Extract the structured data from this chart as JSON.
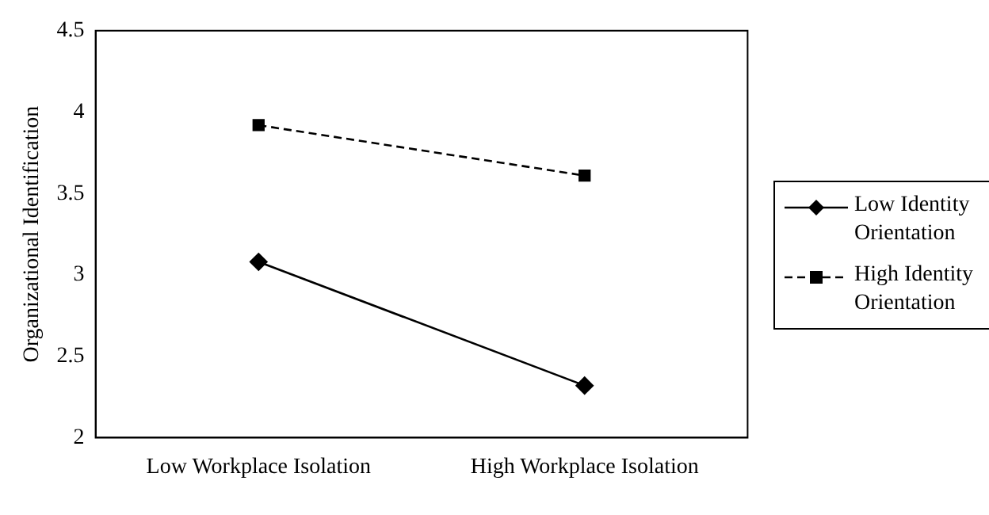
{
  "chart_data": {
    "type": "line",
    "ylabel": "Organizational Identification",
    "categories": [
      "Low Workplace Isolation",
      "High Workplace Isolation"
    ],
    "series": [
      {
        "name": "Low Identity Orientation",
        "color": "#000000",
        "values": [
          3.08,
          2.32
        ],
        "marker": "diamond",
        "line_style": "solid"
      },
      {
        "name": "High Identity Orientation",
        "color": "#000000",
        "values": [
          3.92,
          3.61
        ],
        "marker": "square",
        "line_style": "dashed"
      }
    ],
    "ylim": [
      2,
      4.5
    ],
    "yticks": [
      2,
      2.5,
      3,
      3.5,
      4,
      4.5
    ],
    "grid": false,
    "legend": "right"
  }
}
